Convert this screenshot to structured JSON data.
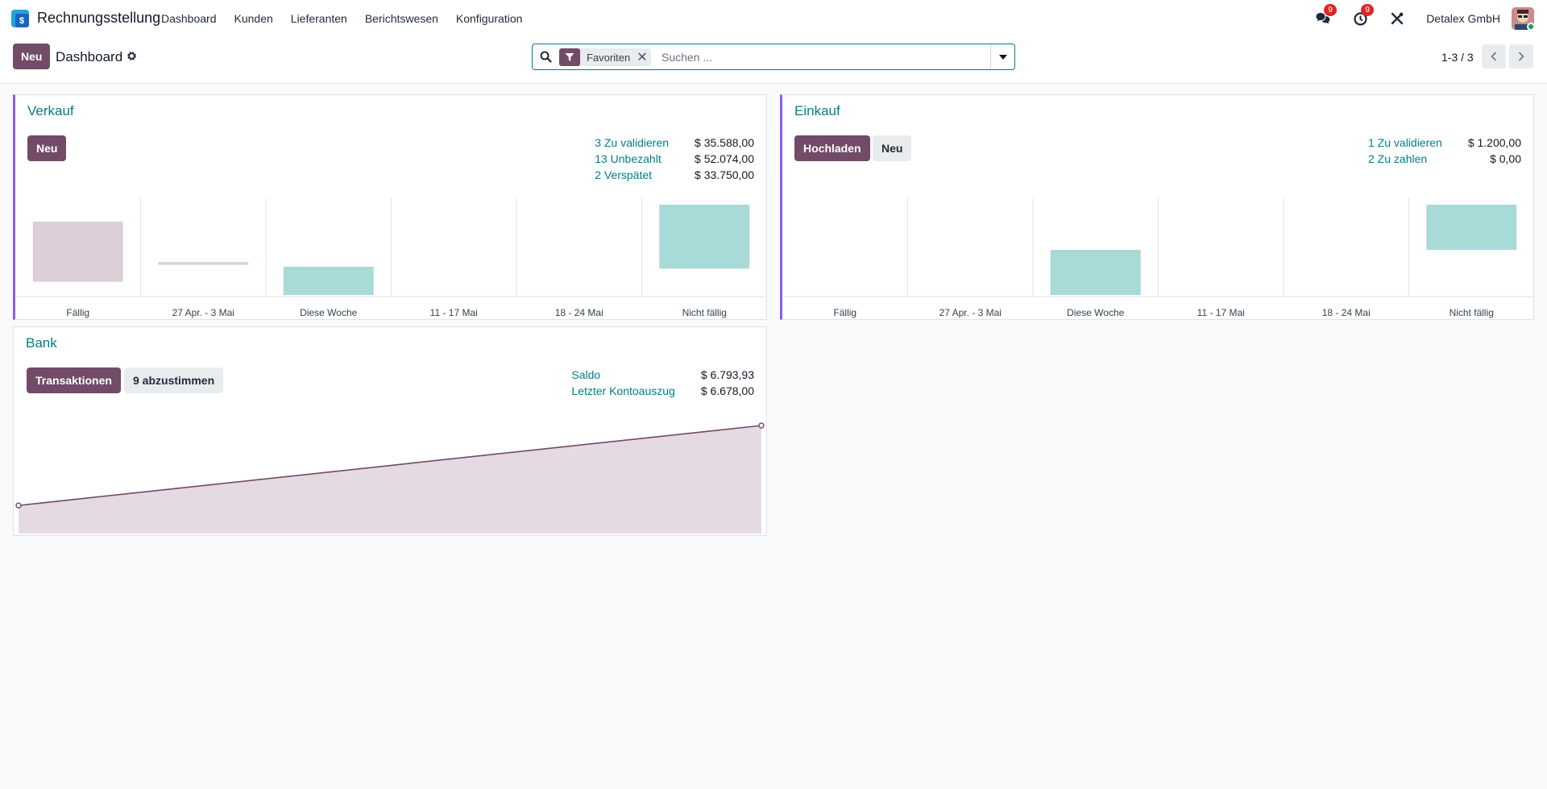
{
  "app": {
    "name": "Rechnungsstellung",
    "logo_icon": "invoicing-app-icon",
    "colors": {
      "brand": "#714b67",
      "accent": "#017e84",
      "bar_past": "#dccfd8",
      "bar_future": "#a8dad8",
      "badge": "#dc2626"
    }
  },
  "menu": [
    {
      "label": "Dashboard"
    },
    {
      "label": "Kunden"
    },
    {
      "label": "Lieferanten"
    },
    {
      "label": "Berichtswesen"
    },
    {
      "label": "Konfiguration"
    }
  ],
  "systray": {
    "messages_badge": "9",
    "activities_badge": "9",
    "company": "Detalex GmbH"
  },
  "control": {
    "new_label": "Neu",
    "title": "Dashboard",
    "facet_label": "Favoriten",
    "search_placeholder": "Suchen ...",
    "pager": "1-3 / 3"
  },
  "cards": {
    "sales": {
      "title": "Verkauf",
      "new_label": "Neu",
      "stats": [
        {
          "label": "3 Zu validieren",
          "value": "$ 35.588,00"
        },
        {
          "label": "13 Unbezahlt",
          "value": "$ 52.074,00"
        },
        {
          "label": "2 Verspätet",
          "value": "$ 33.750,00"
        }
      ]
    },
    "purchase": {
      "title": "Einkauf",
      "upload_label": "Hochladen",
      "new_label": "Neu",
      "stats": [
        {
          "label": "1 Zu validieren",
          "value": "$ 1.200,00"
        },
        {
          "label": "2 Zu zahlen",
          "value": "$ 0,00"
        }
      ]
    },
    "bank": {
      "title": "Bank",
      "transactions_label": "Transaktionen",
      "reconcile_label": "9 abzustimmen",
      "stats": [
        {
          "label": "Saldo",
          "value": "$ 6.793,93"
        },
        {
          "label": "Letzter Kontoauszug",
          "value": "$ 6.678,00"
        }
      ]
    }
  },
  "chart_data": [
    {
      "type": "bar",
      "chart": "sales",
      "categories": [
        "Fällig",
        "27 Apr. - 3 Mai",
        "Diese Woche",
        "11 - 17 Mai",
        "18 - 24 Mai",
        "Nicht fällig"
      ],
      "ranges": [
        [
          -16,
          48
        ],
        [
          2,
          5
        ],
        [
          -30,
          0
        ],
        [
          0,
          0
        ],
        [
          0,
          0
        ],
        [
          -2,
          66
        ]
      ],
      "kinds": [
        "past",
        "past",
        "future",
        "future",
        "future",
        "future"
      ]
    },
    {
      "type": "bar",
      "chart": "purchase",
      "categories": [
        "Fällig",
        "27 Apr. - 3 Mai",
        "Diese Woche",
        "11 - 17 Mai",
        "18 - 24 Mai",
        "Nicht fällig"
      ],
      "ranges": [
        [
          0,
          0
        ],
        [
          0,
          0
        ],
        [
          0,
          60
        ],
        [
          0,
          0
        ],
        [
          0,
          0
        ],
        [
          60,
          120
        ]
      ],
      "kinds": [
        "past",
        "past",
        "future",
        "future",
        "future",
        "future"
      ]
    },
    {
      "type": "area",
      "chart": "bank",
      "values": [
        6678.0,
        6793.93
      ],
      "line_color": "#714b67",
      "fill_color": "#e6dae2"
    }
  ]
}
